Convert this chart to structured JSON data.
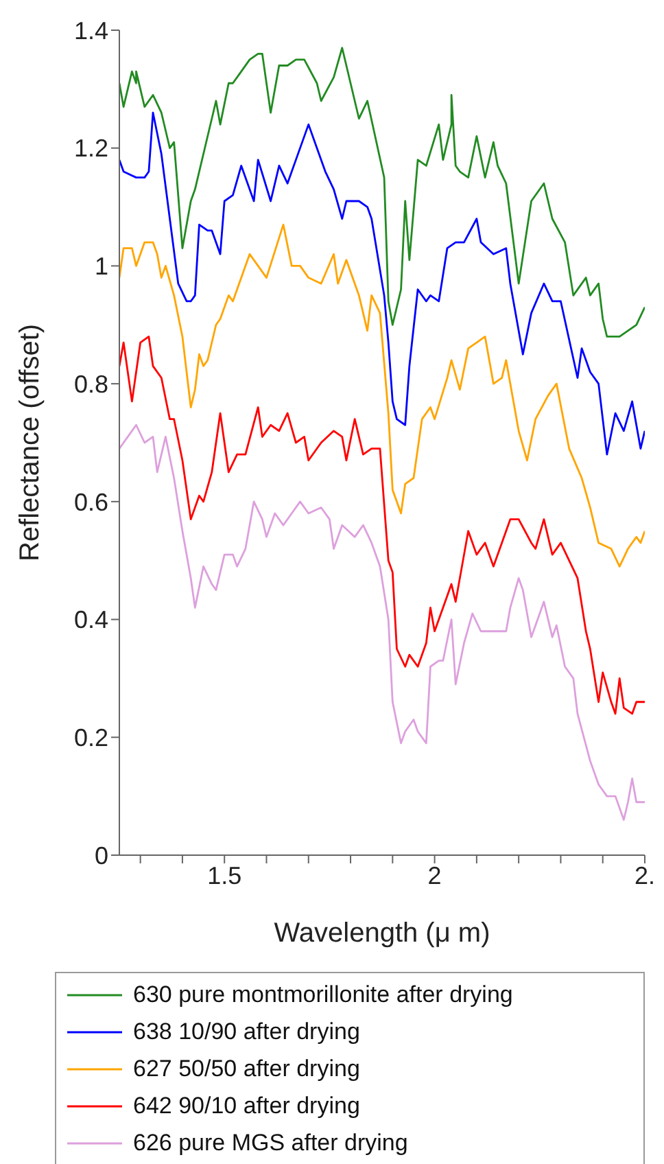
{
  "chart_data": {
    "type": "line",
    "xlabel": "Wavelength (μ m)",
    "ylabel": "Reflectance (offset)",
    "xlim": [
      1.25,
      2.5
    ],
    "xticks": [
      {
        "value": 1.3,
        "label": null
      },
      {
        "value": 1.4,
        "label": null
      },
      1.5,
      {
        "value": 1.6,
        "label": null
      },
      {
        "value": 1.7,
        "label": null
      },
      {
        "value": 1.8,
        "label": null
      },
      {
        "value": 1.9,
        "label": null
      },
      2,
      {
        "value": 2.1,
        "label": null
      },
      {
        "value": 2.2,
        "label": null
      },
      {
        "value": 2.3,
        "label": null
      },
      {
        "value": 2.4,
        "label": null
      },
      {
        "value": 2.5,
        "label": "2."
      }
    ],
    "ylim": [
      0,
      1.4
    ],
    "yticks": [
      0,
      0.2,
      0.4,
      0.6,
      0.8,
      1,
      1.2,
      1.4
    ],
    "legend": "bottom",
    "marker": "none",
    "line_style": "solid",
    "series": [
      {
        "name": "630 pure montmorillonite after drying",
        "color": "#228b22",
        "x": [
          1.25,
          1.26,
          1.28,
          1.29,
          1.29,
          1.31,
          1.33,
          1.35,
          1.37,
          1.38,
          1.4,
          1.42,
          1.43,
          1.46,
          1.48,
          1.49,
          1.51,
          1.52,
          1.54,
          1.56,
          1.58,
          1.59,
          1.61,
          1.63,
          1.65,
          1.67,
          1.69,
          1.72,
          1.73,
          1.76,
          1.78,
          1.8,
          1.82,
          1.84,
          1.88,
          1.89,
          1.9,
          1.92,
          1.93,
          1.94,
          1.96,
          1.98,
          2.01,
          2.02,
          2.04,
          2.04,
          2.05,
          2.06,
          2.08,
          2.1,
          2.12,
          2.14,
          2.15,
          2.17,
          2.2,
          2.23,
          2.26,
          2.28,
          2.31,
          2.33,
          2.36,
          2.37,
          2.39,
          2.4,
          2.41,
          2.44,
          2.46,
          2.48,
          2.5
        ],
        "values": [
          1.31,
          1.27,
          1.33,
          1.31,
          1.33,
          1.27,
          1.29,
          1.26,
          1.2,
          1.21,
          1.03,
          1.11,
          1.13,
          1.22,
          1.28,
          1.24,
          1.31,
          1.31,
          1.33,
          1.35,
          1.36,
          1.36,
          1.26,
          1.34,
          1.34,
          1.35,
          1.35,
          1.31,
          1.28,
          1.32,
          1.37,
          1.31,
          1.25,
          1.28,
          1.15,
          0.94,
          0.9,
          0.96,
          1.11,
          1.01,
          1.18,
          1.17,
          1.24,
          1.18,
          1.24,
          1.29,
          1.17,
          1.16,
          1.15,
          1.22,
          1.15,
          1.21,
          1.17,
          1.14,
          0.97,
          1.11,
          1.14,
          1.08,
          1.04,
          0.95,
          0.98,
          0.95,
          0.97,
          0.91,
          0.88,
          0.88,
          0.89,
          0.9,
          0.93
        ]
      },
      {
        "name": "638 10/90 after drying",
        "color": "#0000ff",
        "x": [
          1.25,
          1.26,
          1.29,
          1.31,
          1.32,
          1.33,
          1.35,
          1.37,
          1.39,
          1.41,
          1.42,
          1.43,
          1.44,
          1.46,
          1.47,
          1.49,
          1.5,
          1.52,
          1.54,
          1.57,
          1.58,
          1.61,
          1.63,
          1.65,
          1.67,
          1.7,
          1.72,
          1.74,
          1.76,
          1.78,
          1.79,
          1.82,
          1.84,
          1.85,
          1.88,
          1.89,
          1.9,
          1.91,
          1.93,
          1.94,
          1.96,
          1.98,
          1.99,
          2.01,
          2.03,
          2.05,
          2.07,
          2.1,
          2.11,
          2.14,
          2.17,
          2.18,
          2.21,
          2.23,
          2.26,
          2.28,
          2.3,
          2.34,
          2.35,
          2.37,
          2.39,
          2.41,
          2.43,
          2.45,
          2.47,
          2.49,
          2.5
        ],
        "values": [
          1.18,
          1.16,
          1.15,
          1.15,
          1.16,
          1.26,
          1.19,
          1.08,
          0.97,
          0.94,
          0.94,
          0.95,
          1.07,
          1.06,
          1.06,
          1.02,
          1.11,
          1.12,
          1.17,
          1.11,
          1.18,
          1.11,
          1.17,
          1.14,
          1.18,
          1.24,
          1.2,
          1.16,
          1.13,
          1.08,
          1.11,
          1.11,
          1.1,
          1.08,
          0.95,
          0.87,
          0.77,
          0.74,
          0.73,
          0.83,
          0.96,
          0.94,
          0.95,
          0.94,
          1.03,
          1.04,
          1.04,
          1.08,
          1.04,
          1.02,
          1.03,
          0.97,
          0.85,
          0.92,
          0.97,
          0.94,
          0.94,
          0.81,
          0.86,
          0.82,
          0.8,
          0.68,
          0.75,
          0.72,
          0.77,
          0.69,
          0.72
        ]
      },
      {
        "name": "627 50/50 after drying",
        "color": "#ffa500",
        "x": [
          1.25,
          1.26,
          1.28,
          1.29,
          1.31,
          1.33,
          1.34,
          1.35,
          1.36,
          1.38,
          1.4,
          1.42,
          1.43,
          1.44,
          1.45,
          1.46,
          1.48,
          1.49,
          1.51,
          1.52,
          1.56,
          1.58,
          1.6,
          1.64,
          1.66,
          1.68,
          1.7,
          1.73,
          1.76,
          1.77,
          1.79,
          1.81,
          1.82,
          1.84,
          1.85,
          1.87,
          1.89,
          1.9,
          1.92,
          1.93,
          1.95,
          1.97,
          1.99,
          2,
          2.03,
          2.04,
          2.06,
          2.08,
          2.1,
          2.12,
          2.13,
          2.14,
          2.16,
          2.17,
          2.2,
          2.22,
          2.24,
          2.27,
          2.29,
          2.32,
          2.35,
          2.37,
          2.39,
          2.42,
          2.44,
          2.46,
          2.48,
          2.49,
          2.5
        ],
        "values": [
          0.98,
          1.03,
          1.03,
          1,
          1.04,
          1.04,
          1.02,
          0.98,
          1,
          0.95,
          0.88,
          0.76,
          0.79,
          0.85,
          0.83,
          0.84,
          0.9,
          0.91,
          0.95,
          0.94,
          1.02,
          1,
          0.98,
          1.07,
          1,
          1,
          0.98,
          0.97,
          1.02,
          0.97,
          1.01,
          0.97,
          0.95,
          0.89,
          0.95,
          0.92,
          0.75,
          0.62,
          0.58,
          0.63,
          0.64,
          0.74,
          0.76,
          0.74,
          0.81,
          0.84,
          0.79,
          0.86,
          0.87,
          0.88,
          0.84,
          0.8,
          0.81,
          0.84,
          0.72,
          0.67,
          0.74,
          0.78,
          0.8,
          0.69,
          0.64,
          0.59,
          0.53,
          0.52,
          0.49,
          0.52,
          0.54,
          0.53,
          0.55
        ]
      },
      {
        "name": "642 90/10 after drying",
        "color": "#ff0000",
        "x": [
          1.25,
          1.26,
          1.28,
          1.3,
          1.32,
          1.33,
          1.35,
          1.37,
          1.38,
          1.4,
          1.42,
          1.44,
          1.45,
          1.47,
          1.49,
          1.51,
          1.53,
          1.55,
          1.58,
          1.59,
          1.61,
          1.63,
          1.65,
          1.67,
          1.69,
          1.7,
          1.73,
          1.76,
          1.78,
          1.79,
          1.81,
          1.83,
          1.85,
          1.87,
          1.89,
          1.9,
          1.91,
          1.93,
          1.94,
          1.96,
          1.98,
          1.99,
          2,
          2.03,
          2.04,
          2.05,
          2.07,
          2.08,
          2.1,
          2.12,
          2.14,
          2.16,
          2.18,
          2.2,
          2.23,
          2.24,
          2.26,
          2.28,
          2.3,
          2.32,
          2.34,
          2.36,
          2.37,
          2.39,
          2.4,
          2.42,
          2.43,
          2.44,
          2.45,
          2.47,
          2.48,
          2.5
        ],
        "values": [
          0.83,
          0.87,
          0.77,
          0.87,
          0.88,
          0.83,
          0.81,
          0.74,
          0.74,
          0.67,
          0.57,
          0.61,
          0.6,
          0.65,
          0.75,
          0.65,
          0.68,
          0.68,
          0.76,
          0.71,
          0.73,
          0.72,
          0.75,
          0.7,
          0.71,
          0.67,
          0.7,
          0.72,
          0.71,
          0.67,
          0.74,
          0.68,
          0.69,
          0.69,
          0.5,
          0.48,
          0.35,
          0.32,
          0.34,
          0.32,
          0.36,
          0.42,
          0.38,
          0.44,
          0.46,
          0.43,
          0.51,
          0.55,
          0.51,
          0.53,
          0.49,
          0.53,
          0.57,
          0.57,
          0.53,
          0.52,
          0.57,
          0.51,
          0.53,
          0.5,
          0.47,
          0.38,
          0.35,
          0.26,
          0.31,
          0.26,
          0.24,
          0.3,
          0.25,
          0.24,
          0.26,
          0.26
        ]
      },
      {
        "name": "626 pure MGS after drying",
        "color": "#dda0dd",
        "x": [
          1.25,
          1.26,
          1.28,
          1.29,
          1.31,
          1.33,
          1.34,
          1.35,
          1.36,
          1.38,
          1.4,
          1.42,
          1.43,
          1.45,
          1.47,
          1.48,
          1.5,
          1.52,
          1.53,
          1.55,
          1.57,
          1.59,
          1.6,
          1.62,
          1.64,
          1.66,
          1.68,
          1.7,
          1.73,
          1.75,
          1.76,
          1.78,
          1.81,
          1.83,
          1.85,
          1.87,
          1.89,
          1.9,
          1.92,
          1.93,
          1.95,
          1.96,
          1.98,
          1.99,
          2.01,
          2.02,
          2.04,
          2.05,
          2.07,
          2.09,
          2.11,
          2.14,
          2.17,
          2.18,
          2.2,
          2.21,
          2.23,
          2.24,
          2.26,
          2.28,
          2.29,
          2.31,
          2.33,
          2.34,
          2.37,
          2.39,
          2.41,
          2.43,
          2.45,
          2.46,
          2.47,
          2.48,
          2.5
        ],
        "values": [
          0.69,
          0.7,
          0.72,
          0.73,
          0.7,
          0.71,
          0.65,
          0.68,
          0.71,
          0.64,
          0.55,
          0.47,
          0.42,
          0.49,
          0.46,
          0.45,
          0.51,
          0.51,
          0.49,
          0.52,
          0.6,
          0.57,
          0.54,
          0.58,
          0.56,
          0.58,
          0.6,
          0.58,
          0.59,
          0.57,
          0.52,
          0.56,
          0.54,
          0.56,
          0.53,
          0.49,
          0.4,
          0.26,
          0.19,
          0.21,
          0.23,
          0.21,
          0.19,
          0.32,
          0.33,
          0.33,
          0.4,
          0.29,
          0.36,
          0.41,
          0.38,
          0.38,
          0.38,
          0.42,
          0.47,
          0.45,
          0.37,
          0.39,
          0.43,
          0.37,
          0.39,
          0.32,
          0.3,
          0.24,
          0.16,
          0.12,
          0.1,
          0.1,
          0.06,
          0.09,
          0.13,
          0.09,
          0.09
        ]
      }
    ]
  }
}
